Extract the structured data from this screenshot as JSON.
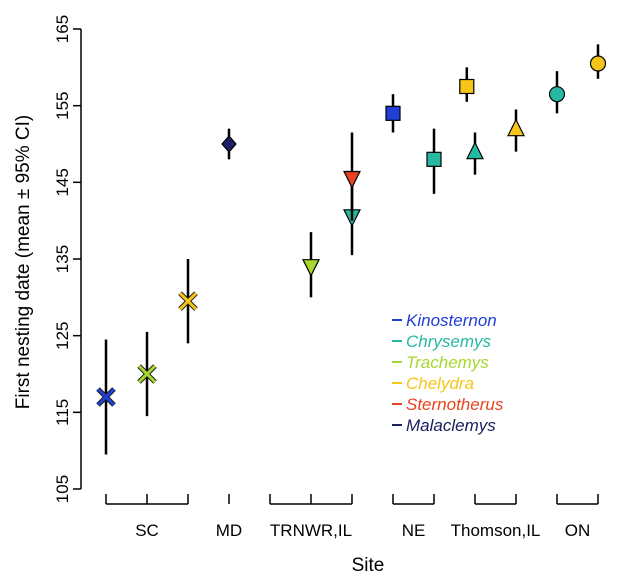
{
  "chart_data": {
    "type": "scatter",
    "xlabel": "Site",
    "ylabel": "First nesting date (mean ± 95% CI)",
    "ylim": [
      105,
      165
    ],
    "yticks": [
      105,
      115,
      125,
      135,
      145,
      155,
      165
    ],
    "grid": false,
    "legend_position": "center-right",
    "sites": [
      {
        "label": "SC",
        "from": 1,
        "to": 3
      },
      {
        "label": "MD",
        "from": 4,
        "to": 4
      },
      {
        "label": "TRNWR,IL",
        "from": 5,
        "to": 7
      },
      {
        "label": "NE",
        "from": 8,
        "to": 9
      },
      {
        "label": "Thomson,IL",
        "from": 10,
        "to": 11
      },
      {
        "label": "ON",
        "from": 12,
        "to": 13
      }
    ],
    "series": [
      {
        "name": "Kinosternon",
        "color": "#1f3fd6",
        "marker": "square",
        "points": [
          {
            "x": 1,
            "y": 117,
            "lo": 109.5,
            "hi": 124.5,
            "marker": "x"
          },
          {
            "x": 8,
            "y": 154,
            "lo": 151.5,
            "hi": 156.5
          }
        ]
      },
      {
        "name": "Chrysemys",
        "color": "#27b8a2",
        "marker": "triangle-up",
        "points": [
          {
            "x": 9,
            "y": 148,
            "lo": 143.5,
            "hi": 152,
            "marker": "square"
          },
          {
            "x": 10,
            "y": 149,
            "lo": 146,
            "hi": 151.5
          },
          {
            "x": 12,
            "y": 156.5,
            "lo": 154,
            "hi": 159.5,
            "marker": "circle"
          },
          {
            "x": 7,
            "y": 140.5,
            "lo": 135.5,
            "hi": 145.5,
            "marker": "triangle-down"
          }
        ]
      },
      {
        "name": "Trachemys",
        "color": "#a8d82f",
        "marker": "triangle-down",
        "points": [
          {
            "x": 2,
            "y": 120,
            "lo": 114.5,
            "hi": 125.5,
            "marker": "x"
          },
          {
            "x": 6,
            "y": 134,
            "lo": 130,
            "hi": 138.5
          }
        ]
      },
      {
        "name": "Chelydra",
        "color": "#f5c518",
        "marker": "square",
        "points": [
          {
            "x": 3,
            "y": 129.5,
            "lo": 124,
            "hi": 135,
            "marker": "x"
          },
          {
            "x": 9.8,
            "y": 157.5,
            "lo": 155.5,
            "hi": 160
          },
          {
            "x": 11,
            "y": 152,
            "lo": 149,
            "hi": 154.5,
            "marker": "triangle-up"
          },
          {
            "x": 13,
            "y": 160.5,
            "lo": 158.5,
            "hi": 163,
            "marker": "circle"
          }
        ]
      },
      {
        "name": "Sternotherus",
        "color": "#e8431e",
        "marker": "triangle-down",
        "points": [
          {
            "x": 7,
            "y": 145.5,
            "lo": 140,
            "hi": 151.5
          }
        ]
      },
      {
        "name": "Malaclemys",
        "color": "#1b2060",
        "marker": "diamond",
        "points": [
          {
            "x": 4,
            "y": 150,
            "lo": 148,
            "hi": 152
          }
        ]
      }
    ]
  }
}
